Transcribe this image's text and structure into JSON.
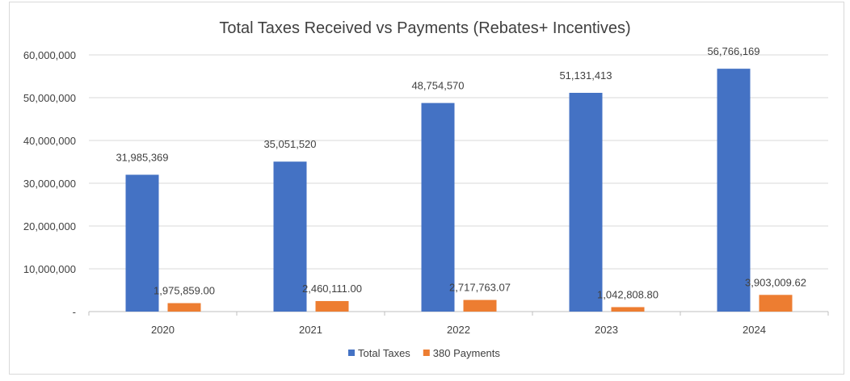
{
  "chart_data": {
    "type": "bar",
    "title": "Total Taxes Received vs Payments (Rebates+ Incentives)",
    "categories": [
      "2020",
      "2021",
      "2022",
      "2023",
      "2024"
    ],
    "series": [
      {
        "name": "Total Taxes",
        "color": "#4472c4",
        "values": [
          31985369,
          35051520,
          48754570,
          51131413,
          56766169
        ],
        "labels": [
          "31,985,369",
          "35,051,520",
          "48,754,570",
          "51,131,413",
          "56,766,169"
        ]
      },
      {
        "name": "380 Payments",
        "color": "#ed7d31",
        "values": [
          1975859.0,
          2460111.0,
          2717763.07,
          1042808.8,
          3903009.62
        ],
        "labels": [
          "1,975,859.00",
          "2,460,111.00",
          "2,717,763.07",
          "1,042,808.80",
          "3,903,009.62"
        ]
      }
    ],
    "ylim": [
      0,
      60000000
    ],
    "yticks": [
      0,
      10000000,
      20000000,
      30000000,
      40000000,
      50000000,
      60000000
    ],
    "ytick_labels": [
      "-",
      "10,000,000",
      "20,000,000",
      "30,000,000",
      "40,000,000",
      "50,000,000",
      "60,000,000"
    ],
    "grid": true,
    "legend": "bottom"
  }
}
